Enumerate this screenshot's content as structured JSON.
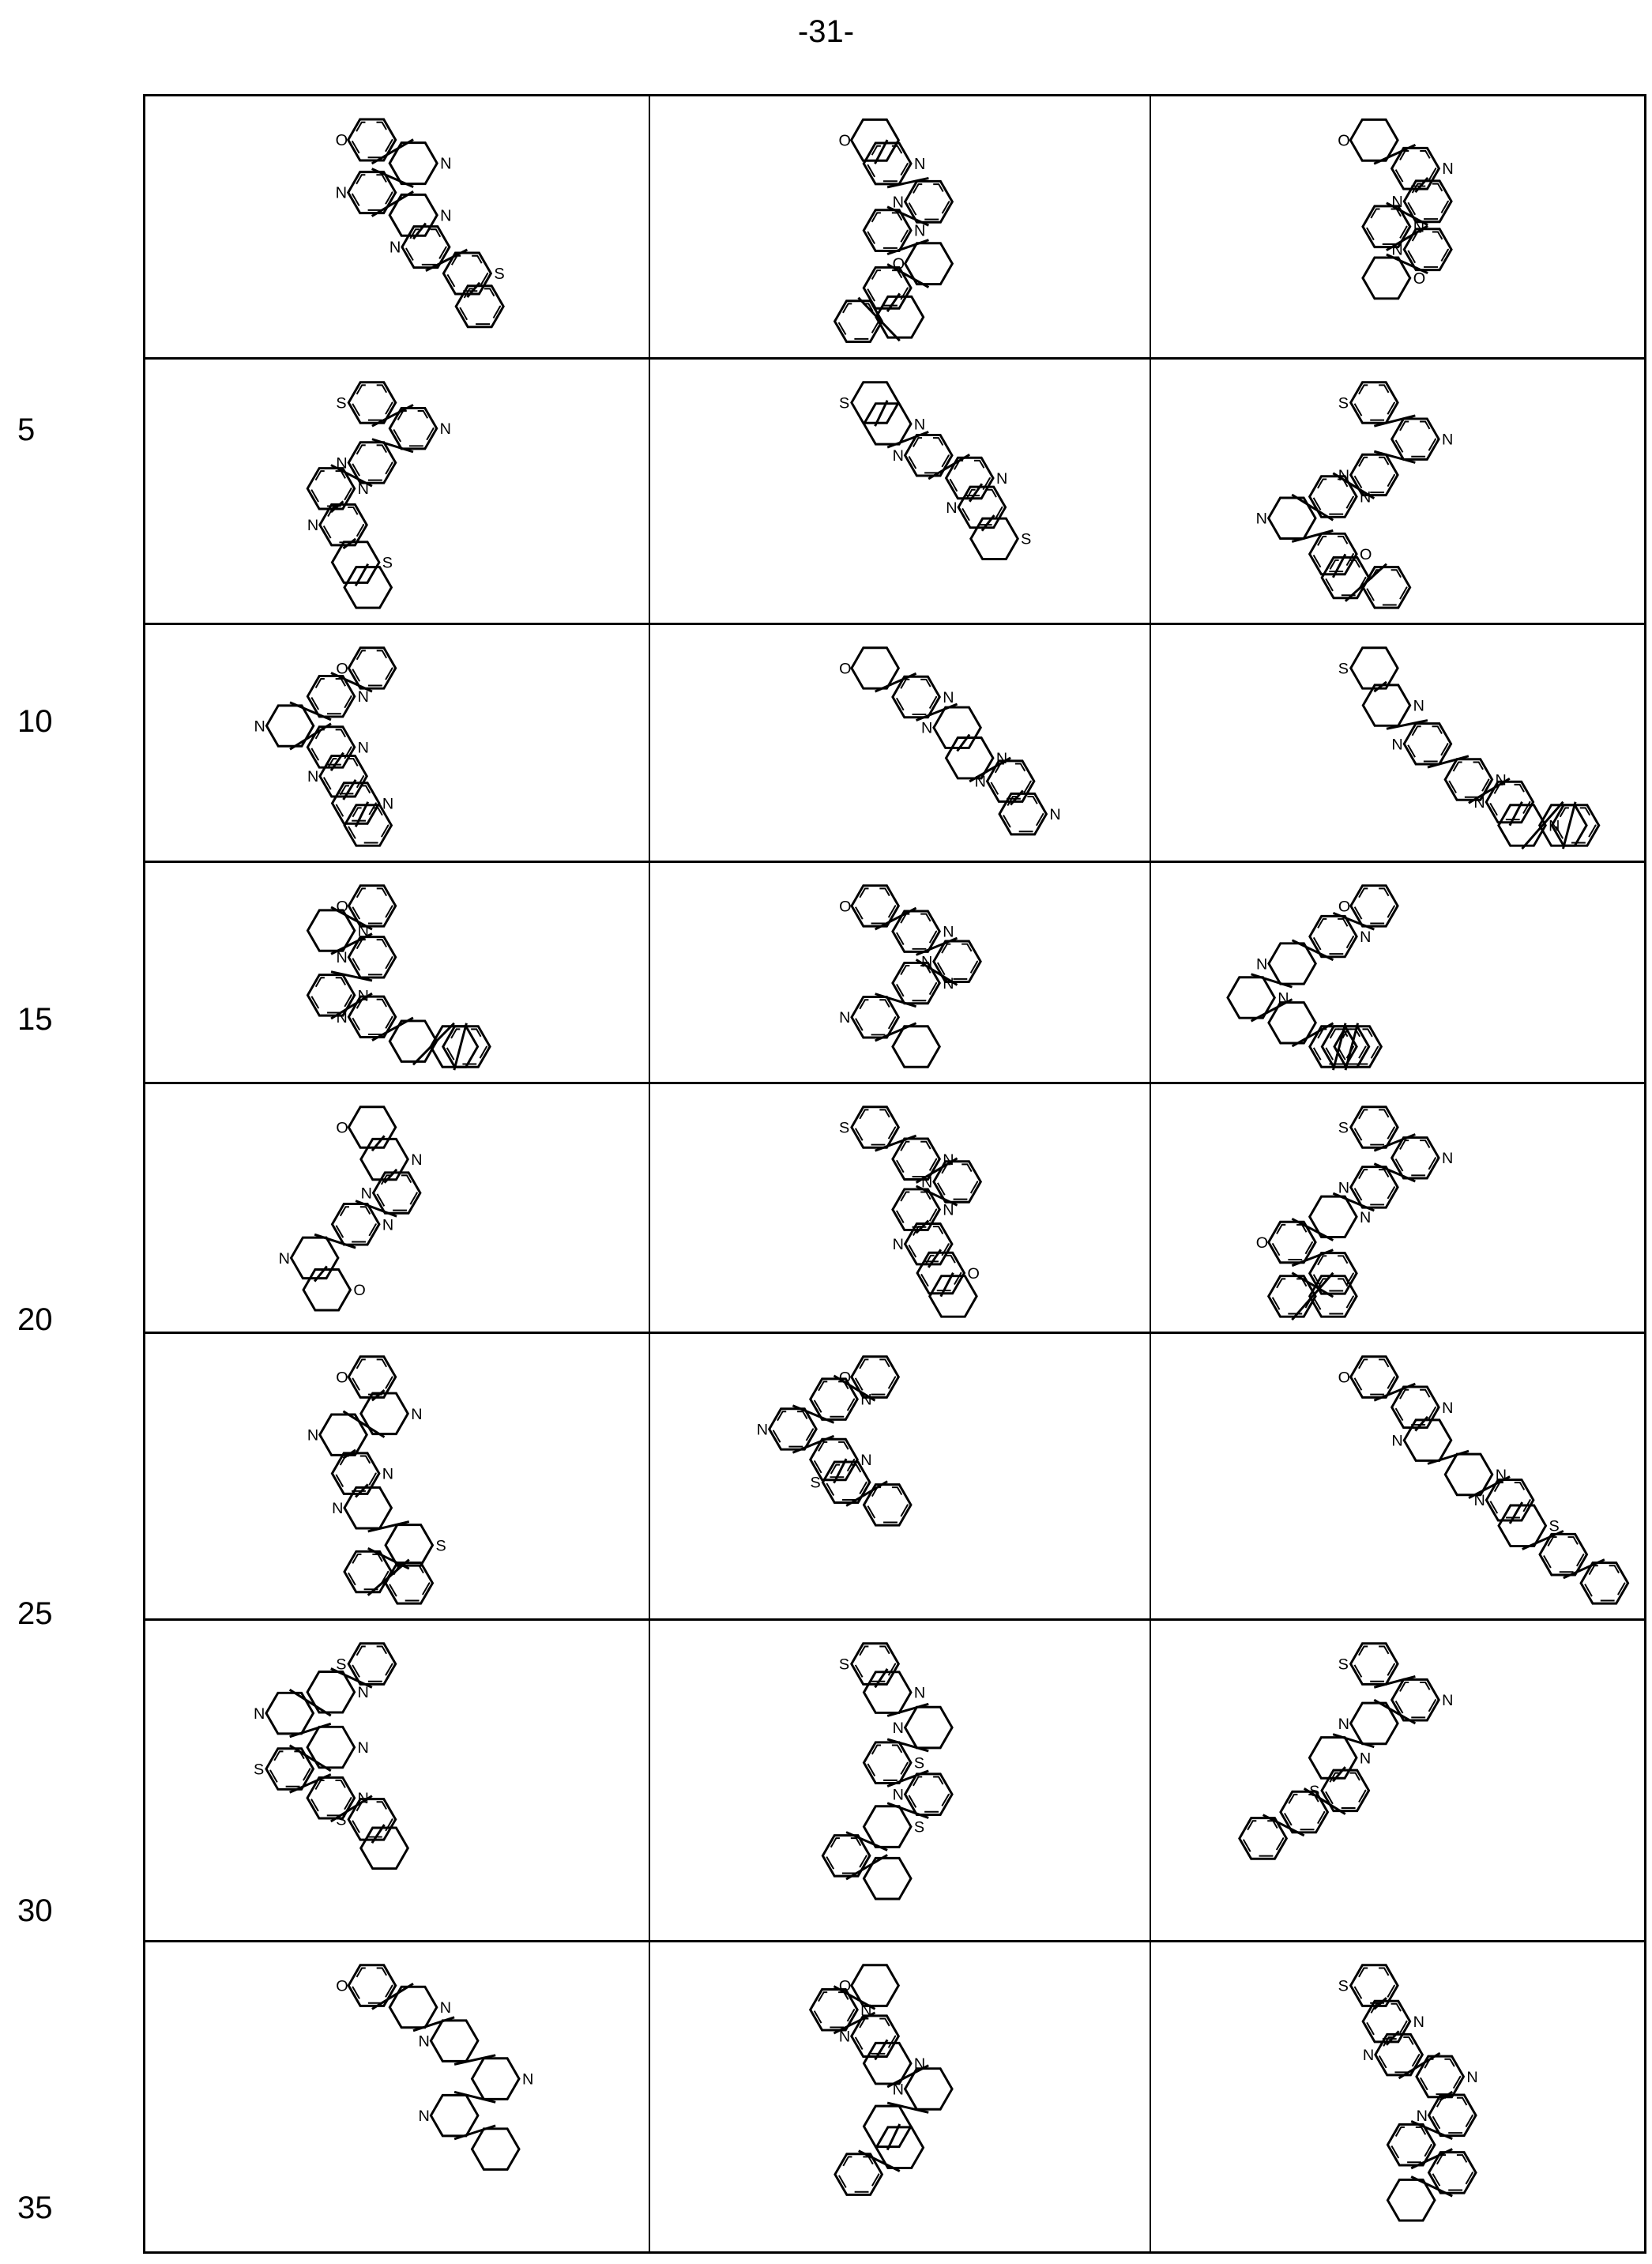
{
  "page_number": "-31-",
  "line_numbers": [
    "5",
    "10",
    "15",
    "20",
    "25",
    "30",
    "35"
  ],
  "table": {
    "rows": [
      {
        "cells": [
          {
            "atoms": [
              "O",
              "N",
              "N",
              "N",
              "N",
              "S"
            ]
          },
          {
            "atoms": [
              "O",
              "N",
              "N",
              "N",
              "O"
            ]
          },
          {
            "atoms": [
              "O",
              "N",
              "N",
              "N",
              "N",
              "O"
            ]
          }
        ]
      },
      {
        "cells": [
          {
            "atoms": [
              "S",
              "N",
              "N",
              "N",
              "N",
              "S"
            ]
          },
          {
            "atoms": [
              "S",
              "N",
              "N",
              "N",
              "N",
              "S"
            ]
          },
          {
            "atoms": [
              "S",
              "N",
              "N",
              "N",
              "N",
              "O"
            ]
          }
        ]
      },
      {
        "cells": [
          {
            "atoms": [
              "O",
              "N",
              "N",
              "N",
              "N",
              "N"
            ]
          },
          {
            "atoms": [
              "O",
              "N",
              "N",
              "N",
              "N",
              "N"
            ]
          },
          {
            "atoms": [
              "S",
              "N",
              "N",
              "N",
              "N",
              "N"
            ]
          }
        ]
      },
      {
        "cells": [
          {
            "atoms": [
              "O",
              "N",
              "N",
              "N",
              "N"
            ]
          },
          {
            "atoms": [
              "O",
              "N",
              "N",
              "N",
              "N"
            ]
          },
          {
            "atoms": [
              "O",
              "N",
              "N",
              "N"
            ]
          }
        ]
      },
      {
        "cells": [
          {
            "atoms": [
              "O",
              "N",
              "N",
              "N",
              "N",
              "O"
            ]
          },
          {
            "atoms": [
              "S",
              "N",
              "N",
              "N",
              "N",
              "O"
            ]
          },
          {
            "atoms": [
              "S",
              "N",
              "N",
              "N",
              "O"
            ]
          }
        ]
      },
      {
        "cells": [
          {
            "atoms": [
              "O",
              "N",
              "N",
              "N",
              "N",
              "S"
            ]
          },
          {
            "atoms": [
              "O",
              "N",
              "N",
              "N",
              "S"
            ]
          },
          {
            "atoms": [
              "O",
              "N",
              "N",
              "N",
              "N",
              "S"
            ]
          }
        ]
      },
      {
        "cells": [
          {
            "atoms": [
              "S",
              "N",
              "N",
              "N",
              "S",
              "N",
              "S"
            ]
          },
          {
            "atoms": [
              "S",
              "N",
              "N",
              "S",
              "N",
              "S"
            ]
          },
          {
            "atoms": [
              "S",
              "N",
              "N",
              "N",
              "S"
            ]
          }
        ]
      },
      {
        "cells": [
          {
            "atoms": [
              "O",
              "N",
              "N",
              "N",
              "N"
            ]
          },
          {
            "atoms": [
              "O",
              "N",
              "N",
              "N",
              "N"
            ]
          },
          {
            "atoms": [
              "S",
              "N",
              "N",
              "N",
              "N"
            ]
          }
        ]
      }
    ]
  }
}
